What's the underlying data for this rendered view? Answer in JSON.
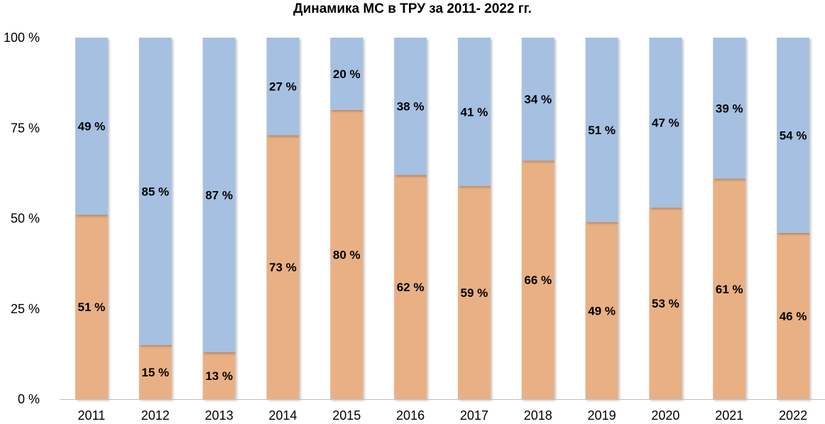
{
  "chart_data": {
    "type": "bar",
    "stacked": true,
    "percent": true,
    "title": "Динамика МС в ТРУ за 2011- 2022 гг.",
    "xlabel": "",
    "ylabel": "",
    "ylim": [
      0,
      100
    ],
    "yticks": [
      "0 %",
      "25 %",
      "50 %",
      "75 %",
      "100 %"
    ],
    "grid": false,
    "categories": [
      "2011",
      "2012",
      "2013",
      "2014",
      "2015",
      "2016",
      "2017",
      "2018",
      "2019",
      "2020",
      "2021",
      "2022"
    ],
    "series": [
      {
        "color": "#E9B084",
        "values": [
          51,
          15,
          13,
          73,
          80,
          62,
          59,
          66,
          49,
          53,
          61,
          46
        ],
        "labels": [
          "51 %",
          "15 %",
          "13 %",
          "73 %",
          "80 %",
          "62 %",
          "59 %",
          "66 %",
          "49 %",
          "53 %",
          "61 %",
          "46 %"
        ]
      },
      {
        "color": "#A6C0E2",
        "values": [
          49,
          85,
          87,
          27,
          20,
          38,
          41,
          34,
          51,
          47,
          39,
          54
        ],
        "labels": [
          "49 %",
          "85 %",
          "87 %",
          "27 %",
          "20 %",
          "38 %",
          "41 %",
          "34 %",
          "51 %",
          "47 %",
          "39 %",
          "54 %"
        ]
      }
    ]
  }
}
